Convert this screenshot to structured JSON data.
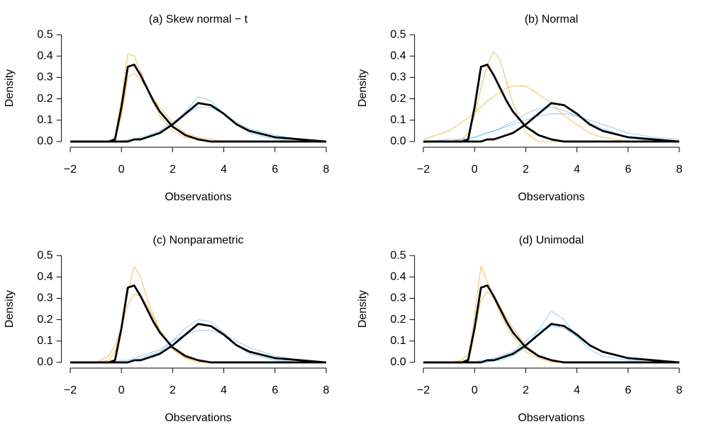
{
  "chart_data": [
    {
      "type": "line",
      "title": "(a) Skew normal − t",
      "xlabel": "Observations",
      "ylabel": "Density",
      "x": [
        -2,
        -1,
        -0.5,
        -0.25,
        0,
        0.25,
        0.5,
        0.75,
        1,
        1.25,
        1.5,
        2,
        2.5,
        3,
        3.5,
        4,
        4.5,
        5,
        6,
        7,
        8
      ],
      "xlim": [
        -2.4,
        8.4
      ],
      "ylim": [
        -0.02,
        0.52
      ],
      "xticks": [
        {
          "value": -2,
          "label": "−2"
        },
        0,
        2,
        4,
        6,
        8
      ],
      "yticks": [
        {
          "value": 0,
          "label": "0.0"
        },
        0.1,
        0.2,
        0.3,
        0.4,
        0.5
      ],
      "series": [
        {
          "color": "#E69F00",
          "values": [
            0,
            0,
            0,
            0.02,
            0.2,
            0.41,
            0.4,
            0.33,
            0.25,
            0.18,
            0.12,
            0.05,
            0.02,
            0.01,
            0,
            0,
            0,
            0,
            0,
            0,
            0
          ]
        },
        {
          "color": "#E69F00",
          "values": [
            0,
            0,
            0,
            0.01,
            0.12,
            0.3,
            0.32,
            0.29,
            0.25,
            0.2,
            0.16,
            0.09,
            0.04,
            0.02,
            0.01,
            0,
            0,
            0,
            0,
            0,
            0
          ]
        },
        {
          "color": "#56B4E9",
          "values": [
            0,
            0,
            0,
            0,
            0,
            0,
            0.01,
            0.01,
            0.02,
            0.03,
            0.04,
            0.08,
            0.14,
            0.21,
            0.19,
            0.13,
            0.08,
            0.04,
            0.01,
            0,
            0
          ]
        },
        {
          "color": "#56B4E9",
          "values": [
            0,
            0,
            0,
            0,
            0,
            0.01,
            0.01,
            0.02,
            0.03,
            0.04,
            0.05,
            0.09,
            0.13,
            0.16,
            0.16,
            0.13,
            0.09,
            0.06,
            0.03,
            0.01,
            0
          ]
        },
        {
          "color": "#000000",
          "values": [
            0,
            0,
            0,
            0.01,
            0.16,
            0.35,
            0.36,
            0.31,
            0.25,
            0.19,
            0.14,
            0.07,
            0.03,
            0.01,
            0,
            0,
            0,
            0,
            0,
            0,
            0
          ]
        },
        {
          "color": "#000000",
          "values": [
            0,
            0,
            0,
            0,
            0,
            0,
            0.01,
            0.01,
            0.02,
            0.03,
            0.04,
            0.08,
            0.13,
            0.18,
            0.17,
            0.13,
            0.08,
            0.05,
            0.02,
            0.01,
            0
          ]
        }
      ]
    },
    {
      "type": "line",
      "title": "(b) Normal",
      "xlabel": "Observations",
      "ylabel": "Density",
      "x": [
        -2,
        -1,
        -0.5,
        -0.25,
        0,
        0.25,
        0.5,
        0.75,
        1,
        1.25,
        1.5,
        2,
        2.5,
        3,
        3.5,
        4,
        4.5,
        5,
        6,
        7,
        8
      ],
      "xlim": [
        -2.4,
        8.4
      ],
      "ylim": [
        -0.02,
        0.52
      ],
      "xticks": [
        {
          "value": -2,
          "label": "−2"
        },
        0,
        2,
        4,
        6,
        8
      ],
      "yticks": [
        {
          "value": 0,
          "label": "0.0"
        },
        0.1,
        0.2,
        0.3,
        0.4,
        0.5
      ],
      "series": [
        {
          "color": "#E69F00",
          "values": [
            0,
            0,
            0.01,
            0.04,
            0.12,
            0.25,
            0.36,
            0.42,
            0.38,
            0.28,
            0.18,
            0.04,
            0,
            0,
            0,
            0,
            0,
            0,
            0,
            0,
            0
          ]
        },
        {
          "color": "#E69F00",
          "values": [
            0.01,
            0.05,
            0.09,
            0.11,
            0.14,
            0.16,
            0.19,
            0.21,
            0.23,
            0.25,
            0.26,
            0.26,
            0.22,
            0.18,
            0.12,
            0.08,
            0.04,
            0.02,
            0,
            0,
            0
          ]
        },
        {
          "color": "#56B4E9",
          "values": [
            0,
            0,
            0.01,
            0.01,
            0.02,
            0.03,
            0.04,
            0.05,
            0.06,
            0.08,
            0.09,
            0.13,
            0.155,
            0.16,
            0.145,
            0.12,
            0.09,
            0.06,
            0.02,
            0,
            0
          ]
        },
        {
          "color": "#56B4E9",
          "values": [
            0,
            0.01,
            0.01,
            0.02,
            0.02,
            0.03,
            0.04,
            0.05,
            0.06,
            0.07,
            0.08,
            0.1,
            0.12,
            0.13,
            0.13,
            0.12,
            0.1,
            0.08,
            0.04,
            0.02,
            0.01
          ]
        },
        {
          "color": "#000000",
          "values": [
            0,
            0,
            0,
            0.01,
            0.16,
            0.35,
            0.36,
            0.31,
            0.25,
            0.19,
            0.14,
            0.07,
            0.03,
            0.01,
            0,
            0,
            0,
            0,
            0,
            0,
            0
          ]
        },
        {
          "color": "#000000",
          "values": [
            0,
            0,
            0,
            0,
            0,
            0,
            0.01,
            0.01,
            0.02,
            0.03,
            0.04,
            0.08,
            0.13,
            0.18,
            0.17,
            0.13,
            0.08,
            0.05,
            0.02,
            0.01,
            0
          ]
        }
      ]
    },
    {
      "type": "line",
      "title": "(c) Nonparametric",
      "xlabel": "Observations",
      "ylabel": "Density",
      "x": [
        -2,
        -1,
        -0.5,
        -0.25,
        0,
        0.25,
        0.5,
        0.75,
        1,
        1.25,
        1.5,
        2,
        2.5,
        3,
        3.5,
        4,
        4.5,
        5,
        6,
        7,
        8
      ],
      "xlim": [
        -2.4,
        8.4
      ],
      "ylim": [
        -0.02,
        0.52
      ],
      "xticks": [
        {
          "value": -2,
          "label": "−2"
        },
        0,
        2,
        4,
        6,
        8
      ],
      "yticks": [
        {
          "value": 0,
          "label": "0.0"
        },
        0.1,
        0.2,
        0.3,
        0.4,
        0.5
      ],
      "series": [
        {
          "color": "#E69F00",
          "values": [
            0,
            0,
            0.01,
            0.05,
            0.15,
            0.33,
            0.45,
            0.4,
            0.3,
            0.22,
            0.15,
            0.06,
            0.02,
            0,
            0,
            0,
            0,
            0,
            0,
            0,
            0
          ]
        },
        {
          "color": "#E69F00",
          "values": [
            0,
            0,
            0.03,
            0.08,
            0.16,
            0.27,
            0.32,
            0.31,
            0.27,
            0.21,
            0.15,
            0.07,
            0.02,
            0.01,
            0,
            0,
            0,
            0,
            0,
            0,
            0
          ]
        },
        {
          "color": "#56B4E9",
          "values": [
            0,
            0,
            0,
            0,
            0,
            0,
            0.01,
            0.02,
            0.03,
            0.04,
            0.05,
            0.1,
            0.16,
            0.2,
            0.19,
            0.14,
            0.08,
            0.04,
            0.01,
            0,
            0
          ]
        },
        {
          "color": "#56B4E9",
          "values": [
            0,
            0,
            0,
            0,
            0.01,
            0.01,
            0.02,
            0.03,
            0.04,
            0.05,
            0.06,
            0.1,
            0.13,
            0.15,
            0.15,
            0.13,
            0.1,
            0.07,
            0.03,
            0.01,
            0
          ]
        },
        {
          "color": "#000000",
          "values": [
            0,
            0,
            0,
            0.01,
            0.16,
            0.35,
            0.36,
            0.31,
            0.25,
            0.19,
            0.14,
            0.07,
            0.03,
            0.01,
            0,
            0,
            0,
            0,
            0,
            0,
            0
          ]
        },
        {
          "color": "#000000",
          "values": [
            0,
            0,
            0,
            0,
            0,
            0,
            0.01,
            0.01,
            0.02,
            0.03,
            0.04,
            0.08,
            0.13,
            0.18,
            0.17,
            0.13,
            0.08,
            0.05,
            0.02,
            0.01,
            0
          ]
        }
      ]
    },
    {
      "type": "line",
      "title": "(d) Unimodal",
      "xlabel": "Observations",
      "ylabel": "Density",
      "x": [
        -2,
        -1,
        -0.5,
        -0.25,
        0,
        0.25,
        0.5,
        0.75,
        1,
        1.25,
        1.5,
        2,
        2.5,
        3,
        3.5,
        4,
        4.5,
        5,
        6,
        7,
        8
      ],
      "xlim": [
        -2.4,
        8.4
      ],
      "ylim": [
        -0.02,
        0.52
      ],
      "xticks": [
        {
          "value": -2,
          "label": "−2"
        },
        0,
        2,
        4,
        6,
        8
      ],
      "yticks": [
        {
          "value": 0,
          "label": "0.0"
        },
        0.1,
        0.2,
        0.3,
        0.4,
        0.5
      ],
      "series": [
        {
          "color": "#E69F00",
          "values": [
            0,
            0,
            0,
            0.02,
            0.22,
            0.45,
            0.38,
            0.3,
            0.23,
            0.17,
            0.12,
            0.05,
            0.02,
            0,
            0,
            0,
            0,
            0,
            0,
            0,
            0
          ]
        },
        {
          "color": "#E69F00",
          "values": [
            0,
            0,
            0.01,
            0.04,
            0.15,
            0.29,
            0.33,
            0.3,
            0.26,
            0.21,
            0.16,
            0.08,
            0.03,
            0.01,
            0,
            0,
            0,
            0,
            0,
            0,
            0
          ]
        },
        {
          "color": "#56B4E9",
          "values": [
            0,
            0,
            0,
            0,
            0,
            0,
            0,
            0.01,
            0.01,
            0.02,
            0.03,
            0.07,
            0.15,
            0.24,
            0.2,
            0.12,
            0.06,
            0.03,
            0.01,
            0,
            0
          ]
        },
        {
          "color": "#56B4E9",
          "values": [
            0,
            0,
            0,
            0,
            0,
            0.01,
            0.01,
            0.02,
            0.03,
            0.04,
            0.05,
            0.1,
            0.15,
            0.17,
            0.16,
            0.12,
            0.08,
            0.05,
            0.02,
            0.01,
            0
          ]
        },
        {
          "color": "#000000",
          "values": [
            0,
            0,
            0,
            0.01,
            0.16,
            0.35,
            0.36,
            0.31,
            0.25,
            0.19,
            0.14,
            0.07,
            0.03,
            0.01,
            0,
            0,
            0,
            0,
            0,
            0,
            0
          ]
        },
        {
          "color": "#000000",
          "values": [
            0,
            0,
            0,
            0,
            0,
            0,
            0.01,
            0.01,
            0.02,
            0.03,
            0.04,
            0.08,
            0.13,
            0.18,
            0.17,
            0.13,
            0.08,
            0.05,
            0.02,
            0.01,
            0
          ]
        }
      ]
    }
  ]
}
